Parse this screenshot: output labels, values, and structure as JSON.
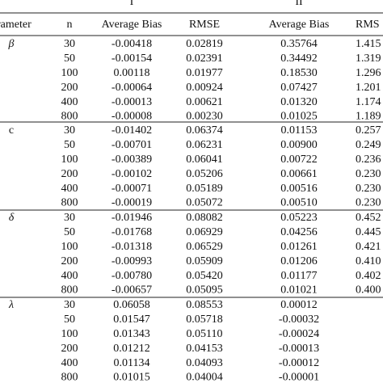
{
  "header": {
    "groups": [
      "I",
      "II"
    ],
    "columns": [
      "rameter",
      "n",
      "Average Bias",
      "RMSE",
      "Average Bias",
      "RMS"
    ]
  },
  "table": {
    "groups": [
      {
        "parameter": "β",
        "rows": [
          [
            "30",
            "-0.00418",
            "0.02819",
            "0.35764",
            "1.415"
          ],
          [
            "50",
            "-0.00154",
            "0.02391",
            "0.34492",
            "1.319"
          ],
          [
            "100",
            "0.00118",
            "0.01977",
            "0.18530",
            "1.296"
          ],
          [
            "200",
            "-0.00064",
            "0.00924",
            "0.07427",
            "1.201"
          ],
          [
            "400",
            "-0.00013",
            "0.00621",
            "0.01320",
            "1.174"
          ],
          [
            "800",
            "-0.00008",
            "0.00230",
            "0.01025",
            "1.189"
          ]
        ]
      },
      {
        "parameter": "c",
        "rows": [
          [
            "30",
            "-0.01402",
            "0.06374",
            "0.01153",
            "0.257"
          ],
          [
            "50",
            "-0.00701",
            "0.06231",
            "0.00900",
            "0.249"
          ],
          [
            "100",
            "-0.00389",
            "0.06041",
            "0.00722",
            "0.236"
          ],
          [
            "200",
            "-0.00102",
            "0.05206",
            "0.00661",
            "0.230"
          ],
          [
            "400",
            "-0.00071",
            "0.05189",
            "0.00516",
            "0.230"
          ],
          [
            "800",
            "-0.00019",
            "0.05072",
            "0.00510",
            "0.230"
          ]
        ]
      },
      {
        "parameter": "δ",
        "rows": [
          [
            "30",
            "-0.01946",
            "0.08082",
            "0.05223",
            "0.452"
          ],
          [
            "50",
            "-0.01768",
            "0.06929",
            "0.04256",
            "0.445"
          ],
          [
            "100",
            "-0.01318",
            "0.06529",
            "0.01261",
            "0.421"
          ],
          [
            "200",
            "-0.00993",
            "0.05909",
            "0.01206",
            "0.410"
          ],
          [
            "400",
            "-0.00780",
            "0.05420",
            "0.01177",
            "0.402"
          ],
          [
            "800",
            "-0.00657",
            "0.05095",
            "0.01021",
            "0.400"
          ]
        ]
      },
      {
        "parameter": "λ",
        "rows": [
          [
            "30",
            "0.06058",
            "0.08553",
            "0.00012"
          ],
          [
            "50",
            "0.01547",
            "0.05718",
            "-0.00032"
          ],
          [
            "100",
            "0.01343",
            "0.05110",
            "-0.00024"
          ],
          [
            "200",
            "0.01212",
            "0.04153",
            "-0.00013"
          ],
          [
            "400",
            "0.01134",
            "0.04093",
            "-0.00012"
          ],
          [
            "800",
            "0.01015",
            "0.04004",
            "-0.00001"
          ]
        ]
      }
    ]
  }
}
